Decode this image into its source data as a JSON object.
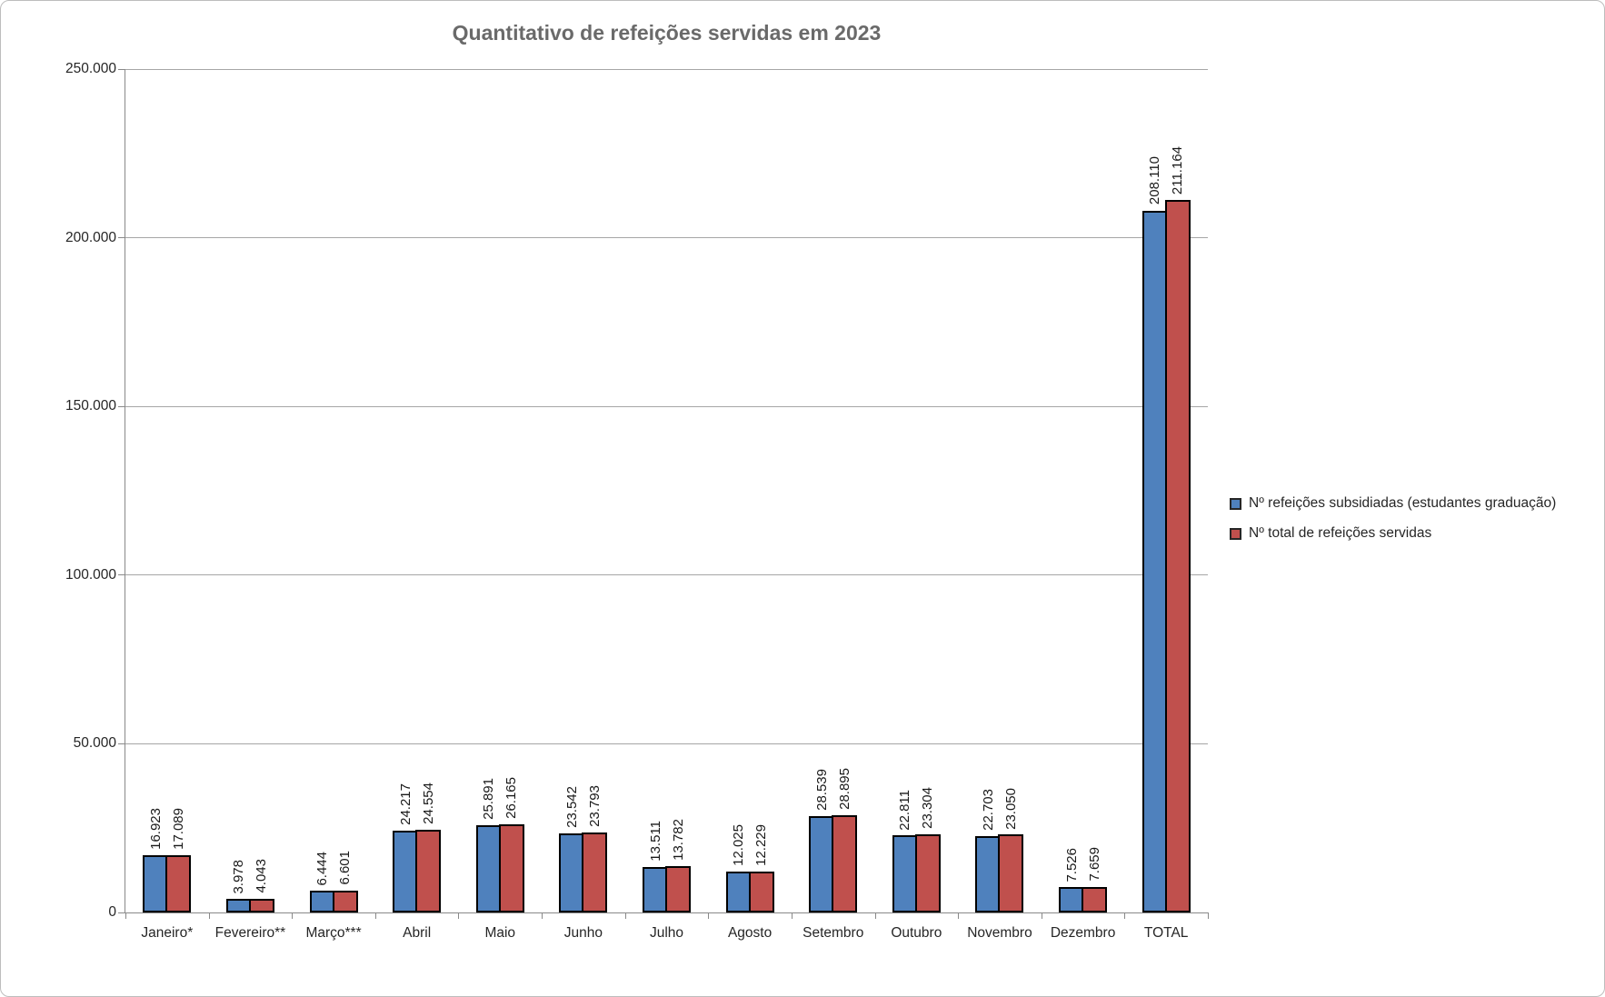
{
  "title": "Quantitativo de refeições servidas em 2023",
  "chart_data": {
    "type": "bar",
    "title": "Quantitativo de refeições servidas em 2023",
    "categories": [
      "Janeiro*",
      "Fevereiro**",
      "Março***",
      "Abril",
      "Maio",
      "Junho",
      "Julho",
      "Agosto",
      "Setembro",
      "Outubro",
      "Novembro",
      "Dezembro",
      "TOTAL"
    ],
    "series": [
      {
        "name": "Nº refeições subsidiadas (estudantes graduação)",
        "color": "#4F81BD",
        "values": [
          16923,
          3978,
          6444,
          24217,
          25891,
          23542,
          13511,
          12025,
          28539,
          22811,
          22703,
          7526,
          208110
        ]
      },
      {
        "name": "Nº total de refeições servidas",
        "color": "#C0504D",
        "values": [
          17089,
          4043,
          6601,
          24554,
          26165,
          23793,
          13782,
          12229,
          28895,
          23304,
          23050,
          7659,
          211164
        ]
      }
    ],
    "xlabel": "",
    "ylabel": "",
    "ylim": [
      0,
      250000
    ],
    "y_tick_step": 50000,
    "y_tick_labels": [
      "0",
      "50.000",
      "100.000",
      "150.000",
      "200.000",
      "250.000"
    ],
    "grid": true,
    "legend_position": "right",
    "data_labels": "rotated-90-thousands-dot"
  },
  "colors": {
    "series_blue": "#4F81BD",
    "series_red": "#C0504D",
    "bar_border": "#000000",
    "title_text": "#6a6a6a",
    "gridline": "#a6a6a6",
    "axis": "#898989"
  }
}
